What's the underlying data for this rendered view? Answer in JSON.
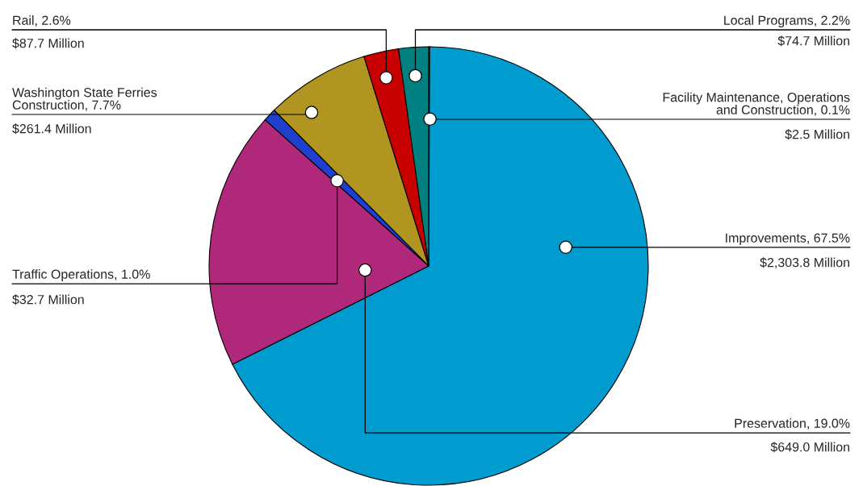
{
  "chart_data": {
    "type": "pie",
    "categories": [
      "Facility Maintenance, Operations\nand Construction, 0.1%",
      "Improvements, 67.5%",
      "Preservation, 19.0%",
      "Traffic Operations, 1.0%",
      "Washington State Ferries\nConstruction, 7.7%",
      "Rail, 2.6%",
      "Local Programs, 2.2%"
    ],
    "values": [
      2.5,
      2303.8,
      649.0,
      32.7,
      261.4,
      87.7,
      74.7
    ],
    "colors": [
      "#9a9a9a",
      "#009bcf",
      "#b0287a",
      "#1f3fcf",
      "#b09520",
      "#c80000",
      "#008080"
    ],
    "value_labels": [
      "$2.5 Million",
      "$2,303.8 Million",
      "$649.0 Million",
      "$32.7 Million",
      "$261.4 Million",
      "$87.7 Million",
      "$74.7 Million"
    ]
  }
}
